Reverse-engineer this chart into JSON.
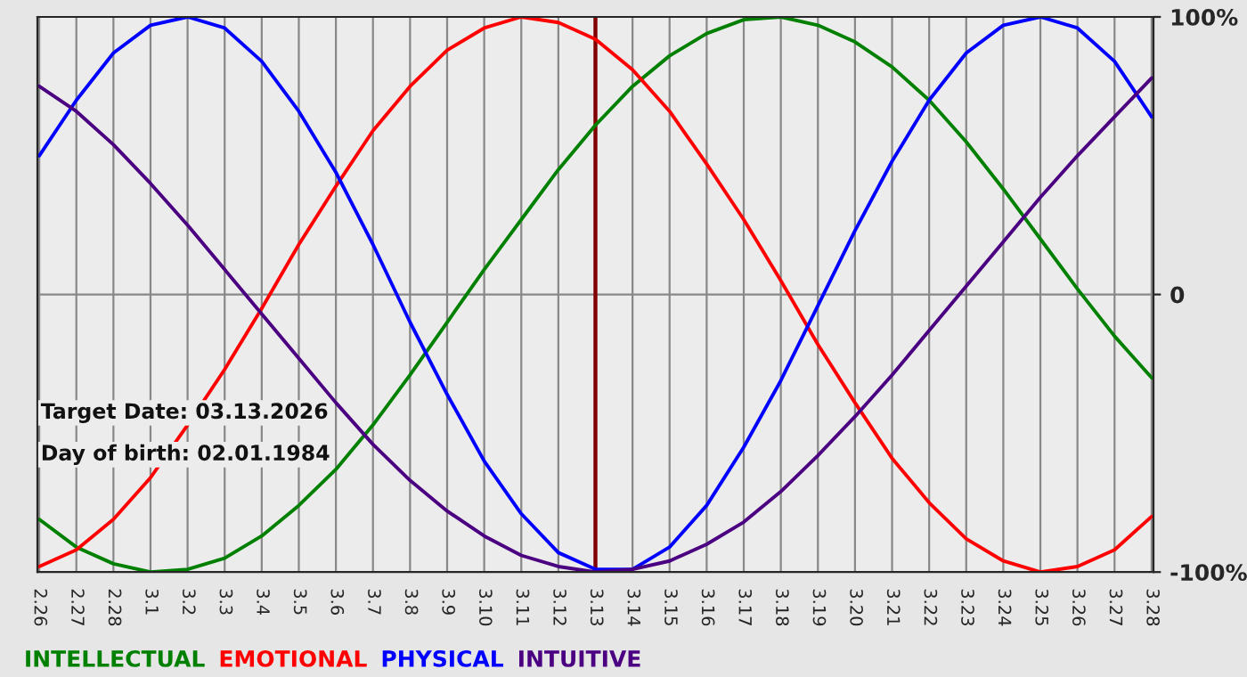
{
  "chart_data": {
    "type": "line",
    "categories": [
      "2.26",
      "2.27",
      "2.28",
      "3.1",
      "3.2",
      "3.3",
      "3.4",
      "3.5",
      "3.6",
      "3.7",
      "3.8",
      "3.9",
      "3.10",
      "3.11",
      "3.12",
      "3.13",
      "3.14",
      "3.15",
      "3.16",
      "3.17",
      "3.18",
      "3.19",
      "3.20",
      "3.21",
      "3.22",
      "3.23",
      "3.24",
      "3.25",
      "3.26",
      "3.27",
      "3.28"
    ],
    "series": [
      {
        "name": "INTELLECTUAL",
        "color": "#008000",
        "values": [
          -81,
          -91,
          -97,
          -100,
          -99,
          -95,
          -87,
          -76,
          -63,
          -47,
          -29,
          -10,
          9,
          27,
          45,
          61,
          75,
          86,
          94,
          99,
          100,
          97,
          91,
          82,
          70,
          55,
          38,
          20,
          2,
          -15,
          -30
        ]
      },
      {
        "name": "EMOTIONAL",
        "color": "#ff0000",
        "values": [
          -98,
          -92,
          -81,
          -66,
          -47,
          -27,
          -5,
          18,
          39,
          59,
          75,
          88,
          96,
          100,
          98,
          92,
          81,
          66,
          47,
          27,
          5,
          -18,
          -39,
          -59,
          -75,
          -88,
          -96,
          -100,
          -98,
          -92,
          -80
        ]
      },
      {
        "name": "PHYSICAL",
        "color": "#0000ff",
        "values": [
          50,
          70,
          87,
          97,
          100,
          96,
          84,
          66,
          44,
          18,
          -10,
          -36,
          -60,
          -79,
          -93,
          -99,
          -99,
          -91,
          -76,
          -55,
          -31,
          -4,
          23,
          48,
          70,
          87,
          97,
          100,
          96,
          84,
          64
        ]
      },
      {
        "name": "INTUITIVE",
        "color": "#4b0082",
        "values": [
          75,
          66,
          54,
          40,
          25,
          9,
          -7,
          -23,
          -39,
          -54,
          -67,
          -78,
          -87,
          -94,
          -98,
          -100,
          -99,
          -96,
          -90,
          -82,
          -71,
          -58,
          -44,
          -29,
          -13,
          3,
          19,
          35,
          50,
          64,
          78
        ]
      }
    ],
    "ylim": [
      -100,
      100
    ],
    "yticks": [
      {
        "value": 100,
        "label": "100%"
      },
      0,
      {
        "value": -100,
        "label": "-100%"
      }
    ],
    "grid": true,
    "legend": "bottom",
    "marker": "none",
    "line_style": "solid",
    "ref_lines": [
      {
        "axis": "x",
        "value": "3.13",
        "color": "#800000"
      }
    ],
    "annotations": [
      "Target Date: 03.13.2026",
      "Day of birth: 02.01.1984"
    ]
  }
}
